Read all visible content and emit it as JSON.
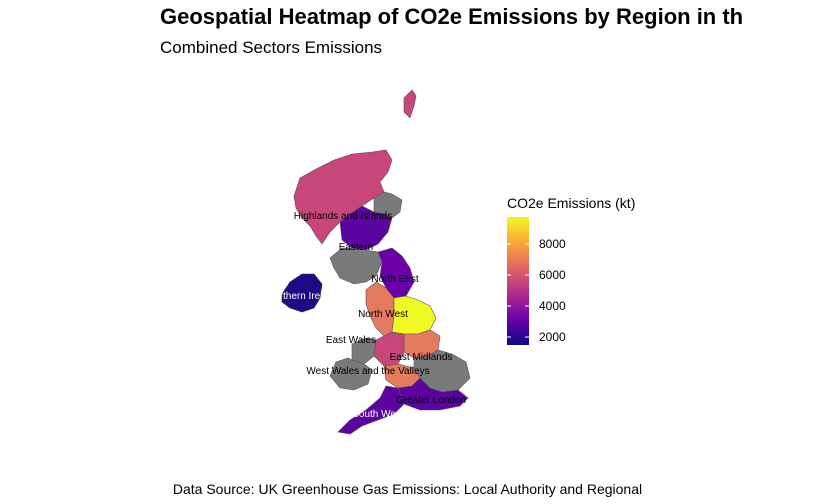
{
  "title": "Geospatial Heatmap of CO2e Emissions by Region in th",
  "subtitle": "Combined Sectors Emissions",
  "caption": "Data Source: UK Greenhouse Gas Emissions: Local Authority and Regional",
  "legend": {
    "title": "CO2e Emissions (kt)",
    "ticks": [
      "8000",
      "6000",
      "4000",
      "2000"
    ],
    "colors": [
      "#0d0887",
      "#6a00a8",
      "#b12a90",
      "#e16462",
      "#fca636",
      "#f0f921"
    ],
    "missing_color": "#7a7a7a"
  },
  "regions": [
    {
      "key": "highlands",
      "label": "Highlands and Islands",
      "color": "#c8467a"
    },
    {
      "key": "eastern",
      "label": "Eastern",
      "color": "#5b04a0"
    },
    {
      "key": "northern_ireland",
      "label": "Northern Ireland",
      "color": "#1d0a87"
    },
    {
      "key": "north_east",
      "label": "North East",
      "color": "#6a00a8"
    },
    {
      "key": "north_west",
      "label": "North West",
      "color": "#e57a5f"
    },
    {
      "key": "yorkshire",
      "label": "",
      "color": "#f0f921"
    },
    {
      "key": "east_wales",
      "label": "East Wales",
      "color": "#7a7a7a"
    },
    {
      "key": "east_midlands",
      "label": "East Midlands",
      "color": "#e57a5f"
    },
    {
      "key": "west_wales",
      "label": "West Wales and the Valleys",
      "color": "#7a7a7a"
    },
    {
      "key": "greater_london",
      "label": "Greater London",
      "color": "#5b04a0"
    },
    {
      "key": "south_west",
      "label": "South West",
      "color": "#5b04a0"
    }
  ]
}
